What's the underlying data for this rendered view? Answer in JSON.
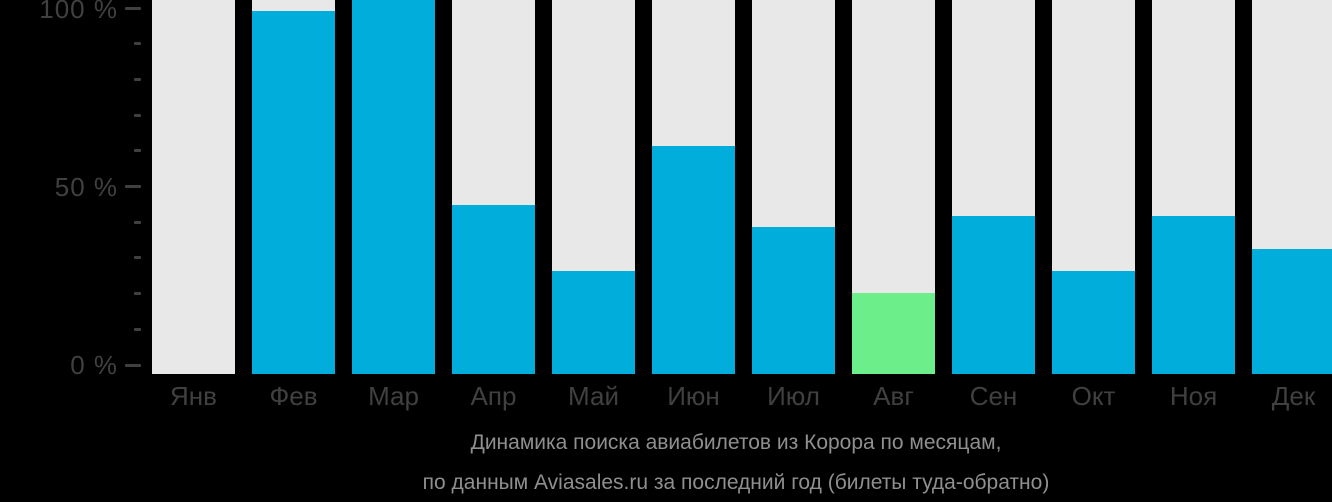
{
  "chart_data": {
    "type": "bar",
    "title": "Динамика поиска авиабилетов из Корора по месяцам,",
    "subtitle": "по данным Aviasales.ru за последний год (билеты туда-обратно)",
    "unit": "%",
    "categories": [
      "Янв",
      "Фев",
      "Мар",
      "Апр",
      "Май",
      "Июн",
      "Июл",
      "Авг",
      "Сен",
      "Окт",
      "Ноя",
      "Дек"
    ],
    "values": [
      0,
      97,
      100,
      44,
      26,
      60,
      38,
      20,
      41,
      26,
      41,
      32
    ],
    "highlighted_category": "Авг",
    "y_tick_labels": [
      "100 %",
      "50 %",
      "0 %"
    ],
    "ylim": [
      0,
      100
    ],
    "minor_tick_step_percent": 10,
    "grid": false,
    "legend": false,
    "colors": {
      "bar": "#00ADDB",
      "highlight": "#6CEE8A",
      "track": "#E8E8E8",
      "axis_text": "#404040",
      "caption_text": "#8F8F8F",
      "background": "#000000"
    }
  }
}
